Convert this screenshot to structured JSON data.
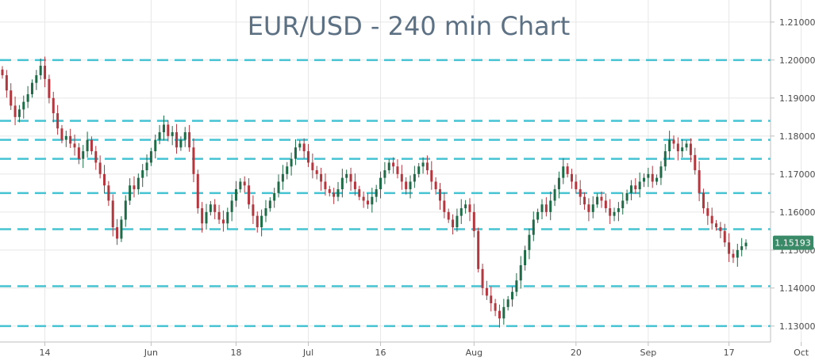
{
  "chart_data": {
    "type": "candlestick",
    "title": "EUR/USD - 240 min Chart",
    "xlabel": "",
    "ylabel": "",
    "ylim": [
      1.1258,
      1.2158
    ],
    "grid": true,
    "y_axis_position": "right",
    "y_ticks": [
      "1.13000",
      "1.14000",
      "1.15000",
      "1.16000",
      "1.17000",
      "1.18000",
      "1.19000",
      "1.20000",
      "1.21000"
    ],
    "x_ticks": [
      {
        "label": "14",
        "index": 10
      },
      {
        "label": "Jun",
        "index": 35
      },
      {
        "label": "18",
        "index": 55
      },
      {
        "label": "Jul",
        "index": 72
      },
      {
        "label": "16",
        "index": 89
      },
      {
        "label": "Aug",
        "index": 111
      },
      {
        "label": "20",
        "index": 135
      },
      {
        "label": "Sep",
        "index": 152
      },
      {
        "label": "17",
        "index": 171
      },
      {
        "label": "Oct",
        "index": 188
      }
    ],
    "horizontal_levels": [
      1.2,
      1.184,
      1.179,
      1.174,
      1.165,
      1.1555,
      1.1405,
      1.13
    ],
    "last_price": "1.15193",
    "colors": {
      "up": "#1f6b47",
      "down": "#b3373f",
      "level": "#46c3d2",
      "grid": "#e7e7e7",
      "price_tag": "#3a8a67",
      "title": "#5d7184"
    },
    "close": [
      1.196,
      1.192,
      1.188,
      1.185,
      1.187,
      1.189,
      1.191,
      1.194,
      1.196,
      1.1985,
      1.195,
      1.19,
      1.186,
      1.182,
      1.179,
      1.18,
      1.178,
      1.177,
      1.174,
      1.176,
      1.179,
      1.176,
      1.173,
      1.17,
      1.167,
      1.163,
      1.156,
      1.153,
      1.158,
      1.163,
      1.167,
      1.166,
      1.169,
      1.171,
      1.173,
      1.176,
      1.179,
      1.181,
      1.183,
      1.18,
      1.181,
      1.177,
      1.179,
      1.181,
      1.177,
      1.17,
      1.161,
      1.157,
      1.16,
      1.162,
      1.16,
      1.158,
      1.157,
      1.16,
      1.163,
      1.166,
      1.168,
      1.167,
      1.162,
      1.159,
      1.156,
      1.159,
      1.161,
      1.163,
      1.165,
      1.168,
      1.17,
      1.172,
      1.174,
      1.177,
      1.178,
      1.176,
      1.173,
      1.171,
      1.17,
      1.168,
      1.166,
      1.165,
      1.164,
      1.166,
      1.169,
      1.17,
      1.168,
      1.166,
      1.164,
      1.163,
      1.162,
      1.164,
      1.166,
      1.169,
      1.171,
      1.173,
      1.172,
      1.17,
      1.168,
      1.166,
      1.168,
      1.17,
      1.172,
      1.173,
      1.171,
      1.168,
      1.166,
      1.163,
      1.16,
      1.158,
      1.156,
      1.159,
      1.161,
      1.162,
      1.16,
      1.155,
      1.145,
      1.14,
      1.138,
      1.136,
      1.134,
      1.132,
      1.135,
      1.137,
      1.139,
      1.142,
      1.146,
      1.15,
      1.154,
      1.158,
      1.16,
      1.162,
      1.16,
      1.163,
      1.166,
      1.169,
      1.172,
      1.17,
      1.168,
      1.166,
      1.164,
      1.162,
      1.16,
      1.162,
      1.164,
      1.163,
      1.161,
      1.159,
      1.16,
      1.161,
      1.163,
      1.165,
      1.167,
      1.166,
      1.168,
      1.169,
      1.17,
      1.168,
      1.169,
      1.172,
      1.176,
      1.179,
      1.178,
      1.176,
      1.177,
      1.178,
      1.175,
      1.171,
      1.165,
      1.161,
      1.159,
      1.157,
      1.156,
      1.155,
      1.152,
      1.149,
      1.148,
      1.15,
      1.151,
      1.15193
    ]
  }
}
